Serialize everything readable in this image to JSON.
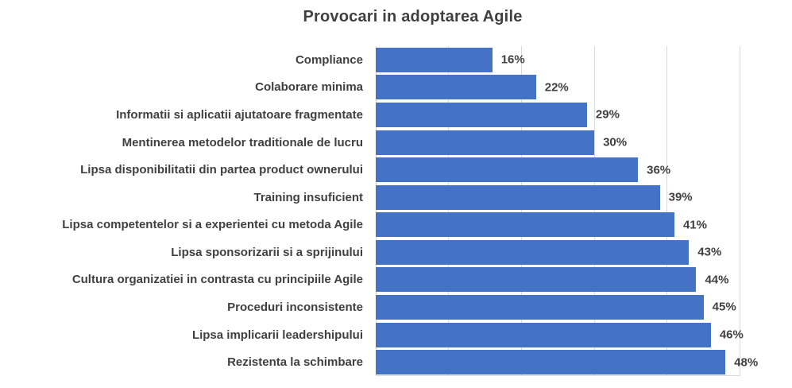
{
  "title": "Provocari in adoptarea Agile",
  "colors": {
    "bar": "#4472C4",
    "gridline": "#D9D9D9",
    "text": "#404040",
    "background": "#FFFFFF"
  },
  "chart_data": {
    "type": "bar",
    "orientation": "horizontal",
    "title": "Provocari in adoptarea Agile",
    "categories": [
      "Compliance",
      "Colaborare minima",
      "Informatii si aplicatii ajutatoare fragmentate",
      "Mentinerea metodelor traditionale de lucru",
      "Lipsa disponibilitatii din partea product ownerului",
      "Training insuficient",
      "Lipsa competentelor si a experientei cu metoda Agile",
      "Lipsa sponsorizarii si a sprijinului",
      "Cultura organizatiei in contrasta cu principiile Agile",
      "Proceduri inconsistente",
      "Lipsa implicarii leadershipului",
      "Rezistenta la schimbare"
    ],
    "values": [
      16,
      22,
      29,
      30,
      36,
      39,
      41,
      43,
      44,
      45,
      46,
      48
    ],
    "data_labels": [
      "16%",
      "22%",
      "29%",
      "30%",
      "36%",
      "39%",
      "41%",
      "43%",
      "44%",
      "45%",
      "46%",
      "48%"
    ],
    "value_suffix": "%",
    "xlabel": "",
    "ylabel": "",
    "xlim": [
      0,
      50
    ],
    "gridlines": [
      10,
      20,
      30,
      40,
      50
    ],
    "grid": "on",
    "legend": "none",
    "data_label_position": "outside-end",
    "axis_tick_labels": "hidden"
  }
}
